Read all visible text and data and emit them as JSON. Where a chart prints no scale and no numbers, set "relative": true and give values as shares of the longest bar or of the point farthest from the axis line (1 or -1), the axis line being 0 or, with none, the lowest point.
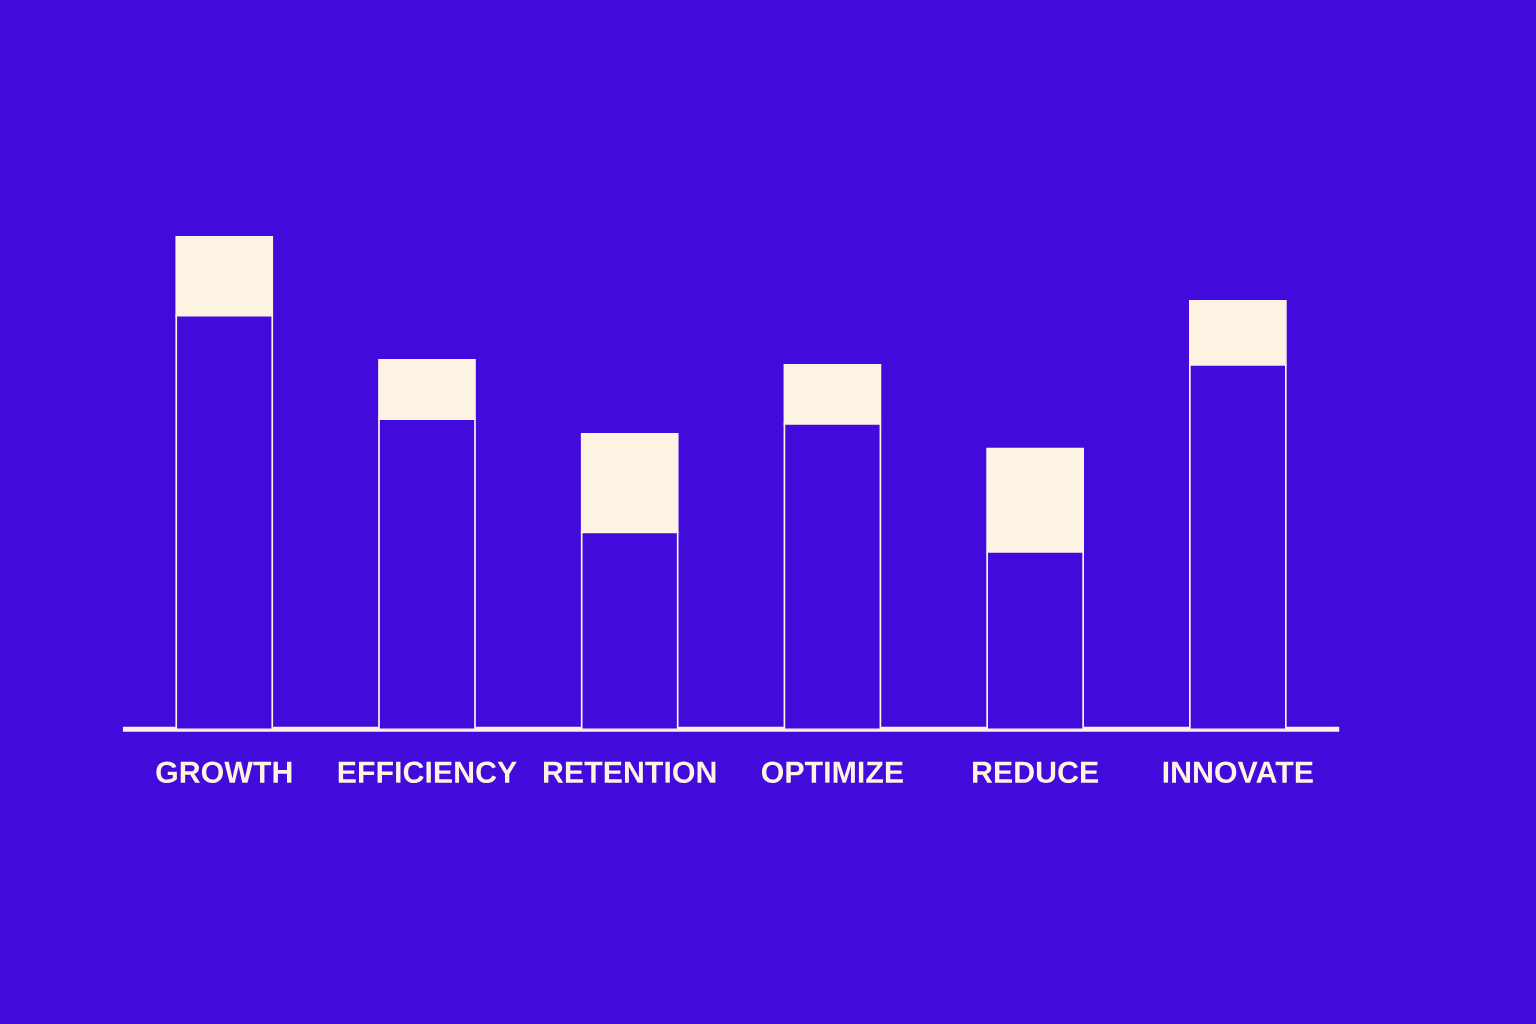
{
  "chart_data": {
    "type": "bar",
    "stacked": true,
    "relative": true,
    "categories": [
      "GROWTH",
      "EFFICIENCY",
      "RETENTION",
      "OPTIMIZE",
      "REDUCE",
      "INNOVATE"
    ],
    "series": [
      {
        "color": "#420bdc",
        "values": [
          0.84,
          0.63,
          0.4,
          0.62,
          0.36,
          0.74
        ]
      },
      {
        "color": "#fdf3e3",
        "values": [
          0.16,
          0.12,
          0.2,
          0.12,
          0.21,
          0.13
        ]
      }
    ]
  }
}
